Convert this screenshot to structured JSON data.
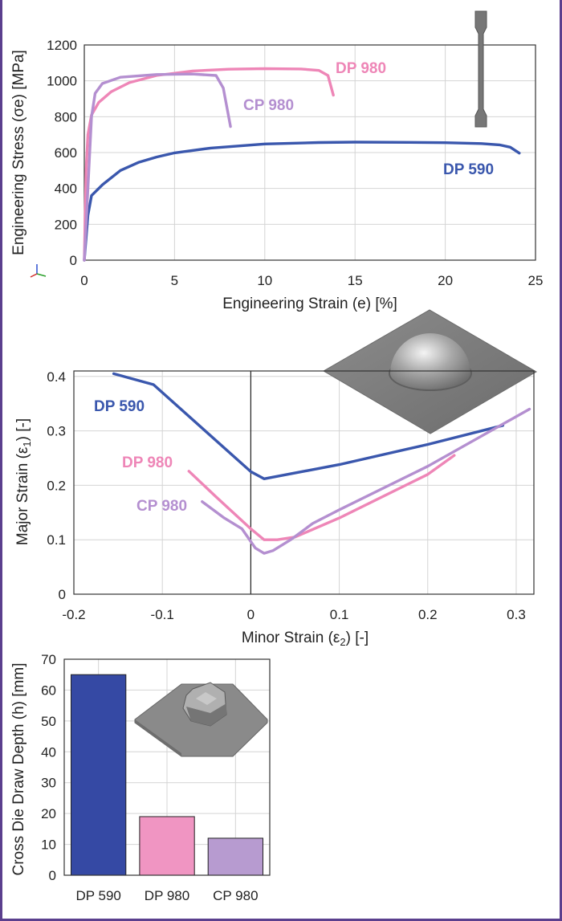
{
  "chart_data": [
    {
      "type": "line",
      "xlabel": "Engineering Strain (e) [%]",
      "ylabel": "Engineering Stress (σe) [MPa]",
      "xlim": [
        0,
        25
      ],
      "ylim": [
        0,
        1200
      ],
      "xticks": [
        "0",
        "5",
        "10",
        "15",
        "20",
        "25"
      ],
      "yticks": [
        "0",
        "200",
        "400",
        "600",
        "800",
        "1000",
        "1200"
      ],
      "grid": true,
      "series": [
        {
          "name": "DP 590",
          "color": "#3a57ad",
          "points": [
            [
              0,
              0
            ],
            [
              0.2,
              250
            ],
            [
              0.4,
              360
            ],
            [
              1,
              420
            ],
            [
              2,
              500
            ],
            [
              3,
              545
            ],
            [
              4,
              575
            ],
            [
              5,
              598
            ],
            [
              7,
              625
            ],
            [
              10,
              648
            ],
            [
              13,
              656
            ],
            [
              15,
              658
            ],
            [
              18,
              657
            ],
            [
              20,
              655
            ],
            [
              22,
              650
            ],
            [
              23,
              643
            ],
            [
              23.6,
              630
            ],
            [
              24.1,
              597
            ]
          ]
        },
        {
          "name": "DP 980",
          "color": "#ee86b7",
          "points": [
            [
              0,
              0
            ],
            [
              0.1,
              500
            ],
            [
              0.2,
              700
            ],
            [
              0.4,
              810
            ],
            [
              0.8,
              880
            ],
            [
              1.5,
              940
            ],
            [
              2.5,
              990
            ],
            [
              4,
              1030
            ],
            [
              6,
              1055
            ],
            [
              8,
              1065
            ],
            [
              10,
              1068
            ],
            [
              12,
              1066
            ],
            [
              13,
              1058
            ],
            [
              13.5,
              1030
            ],
            [
              13.8,
              920
            ]
          ]
        },
        {
          "name": "CP 980",
          "color": "#b48fd0",
          "points": [
            [
              0,
              0
            ],
            [
              0.2,
              400
            ],
            [
              0.4,
              800
            ],
            [
              0.6,
              930
            ],
            [
              1,
              985
            ],
            [
              2,
              1020
            ],
            [
              4,
              1035
            ],
            [
              6,
              1038
            ],
            [
              7.3,
              1030
            ],
            [
              7.7,
              960
            ],
            [
              8.1,
              745
            ]
          ]
        }
      ],
      "annotations": [
        "DP 980",
        "CP 980",
        "DP 590"
      ]
    },
    {
      "type": "line",
      "xlabel": "Minor Strain (ε2) [-]",
      "ylabel": "Major Strain (ε1) [-]",
      "xlim": [
        -0.2,
        0.32
      ],
      "ylim": [
        0,
        0.41
      ],
      "xticks": [
        "-0.2",
        "-0.1",
        "0",
        "0.1",
        "0.2",
        "0.3"
      ],
      "yticks": [
        "0",
        "0.1",
        "0.2",
        "0.3",
        "0.4"
      ],
      "grid": true,
      "series": [
        {
          "name": "DP 590",
          "color": "#3a57ad",
          "points": [
            [
              -0.155,
              0.405
            ],
            [
              -0.11,
              0.385
            ],
            [
              0,
              0.225
            ],
            [
              0.015,
              0.212
            ],
            [
              0.1,
              0.238
            ],
            [
              0.2,
              0.275
            ],
            [
              0.285,
              0.31
            ]
          ]
        },
        {
          "name": "DP 980",
          "color": "#ee86b7",
          "points": [
            [
              -0.07,
              0.226
            ],
            [
              -0.04,
              0.18
            ],
            [
              -0.02,
              0.15
            ],
            [
              0,
              0.12
            ],
            [
              0.015,
              0.1
            ],
            [
              0.03,
              0.1
            ],
            [
              0.05,
              0.105
            ],
            [
              0.1,
              0.14
            ],
            [
              0.2,
              0.22
            ],
            [
              0.23,
              0.255
            ]
          ]
        },
        {
          "name": "CP 980",
          "color": "#b48fd0",
          "points": [
            [
              -0.055,
              0.17
            ],
            [
              -0.03,
              0.14
            ],
            [
              -0.01,
              0.12
            ],
            [
              0.005,
              0.085
            ],
            [
              0.015,
              0.075
            ],
            [
              0.025,
              0.08
            ],
            [
              0.045,
              0.1
            ],
            [
              0.07,
              0.13
            ],
            [
              0.1,
              0.155
            ],
            [
              0.2,
              0.235
            ],
            [
              0.315,
              0.34
            ]
          ]
        }
      ],
      "annotations": [
        "DP 590",
        "DP 980",
        "CP 980"
      ]
    },
    {
      "type": "bar",
      "ylabel": "Cross Die Draw Depth (h) [mm]",
      "categories": [
        "DP 590",
        "DP 980",
        "CP 980"
      ],
      "values": [
        65,
        19,
        12
      ],
      "colors": [
        "#3549a4",
        "#f095c2",
        "#b79bd0"
      ],
      "ylim": [
        0,
        70
      ],
      "yticks": [
        "0",
        "10",
        "20",
        "30",
        "40",
        "50",
        "60",
        "70"
      ],
      "grid": true
    }
  ]
}
